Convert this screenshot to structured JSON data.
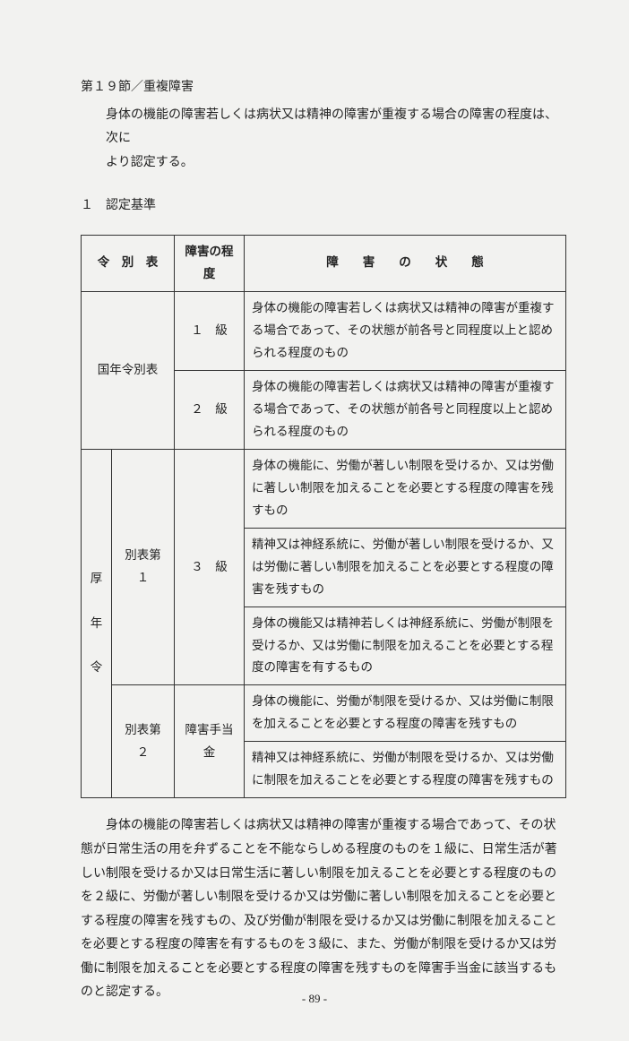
{
  "section_title": "第１９節／重複障害",
  "intro_lines": [
    "身体の機能の障害若しくは病状又は精神の障害が重複する場合の障害の程度は、次に",
    "より認定する。"
  ],
  "criteria_head": "１　認定基準",
  "headers": {
    "col1": "令　別　表",
    "col2": "障害の程度",
    "col3": "障　　害　　の　　状　　態"
  },
  "row1_label": "国年令別表",
  "row1a_grade": "１　級",
  "row1a_desc": "身体の機能の障害若しくは病状又は精神の障害が重複する場合であって、その状態が前各号と同程度以上と認められる程度のもの",
  "row1b_grade": "２　級",
  "row1b_desc": "身体の機能の障害若しくは病状又は精神の障害が重複する場合であって、その状態が前各号と同程度以上と認められる程度のもの",
  "row2_vlabel": "厚　年　令",
  "row2_label": "別表第１",
  "row2_grade": "３　級",
  "row2a_desc": "身体の機能に、労働が著しい制限を受けるか、又は労働に著しい制限を加えることを必要とする程度の障害を残すもの",
  "row2b_desc": "精神又は神経系統に、労働が著しい制限を受けるか、又は労働に著しい制限を加えることを必要とする程度の障害を残すもの",
  "row2c_desc": "身体の機能又は精神若しくは神経系統に、労働が制限を受けるか、又は労働に制限を加えることを必要とする程度の障害を有するもの",
  "row3_label": "別表第２",
  "row3_grade": "障害手当金",
  "row3a_desc": "身体の機能に、労働が制限を受けるか、又は労働に制限を加えることを必要とする程度の障害を残すもの",
  "row3b_desc": "精神又は神経系統に、労働が制限を受けるか、又は労働に制限を加えることを必要とする程度の障害を残すもの",
  "body": "　身体の機能の障害若しくは病状又は精神の障害が重複する場合であって、その状態が日常生活の用を弁ずることを不能ならしめる程度のものを１級に、日常生活が著しい制限を受けるか又は日常生活に著しい制限を加えることを必要とする程度のものを２級に、労働が著しい制限を受けるか又は労働に著しい制限を加えることを必要とする程度の障害を残すもの、及び労働が制限を受けるか又は労働に制限を加えることを必要とする程度の障害を有するものを３級に、また、労働が制限を受けるか又は労働に制限を加えることを必要とする程度の障害を残すものを障害手当金に該当するものと認定する。",
  "page_number": "- 89 -"
}
